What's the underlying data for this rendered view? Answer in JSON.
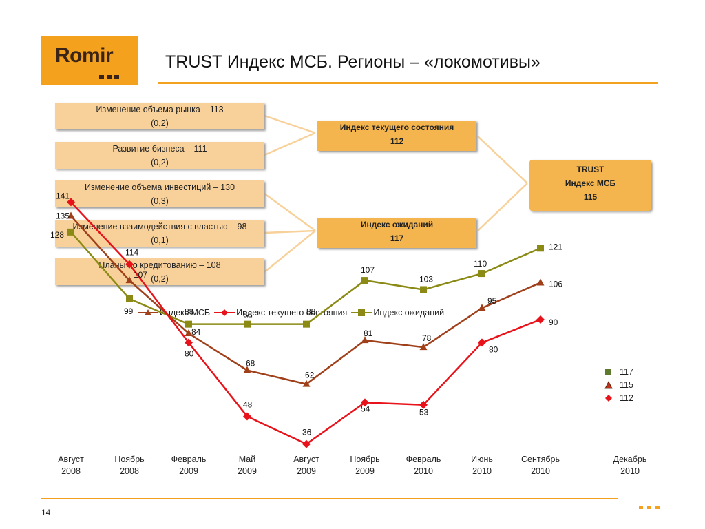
{
  "logo": {
    "text": "Romir"
  },
  "title": "TRUST Индекс МСБ. Регионы – «локомотивы»",
  "components": [
    {
      "label": "Изменение объема рынка – 113",
      "weight": "(0,2)"
    },
    {
      "label": "Развитие бизнеса – 111",
      "weight": "(0,2)"
    },
    {
      "label": "Изменение объема инвестиций – 130",
      "weight": "(0,3)"
    },
    {
      "label": "Изменение взаимодействия с властью – 98",
      "weight": "(0,1)"
    },
    {
      "label": "Планы по кредитованию – 108",
      "weight": "(0,2)"
    }
  ],
  "indices": [
    {
      "label": "Индекс текущего состояния",
      "value": "112"
    },
    {
      "label": "Индекс ожиданий",
      "value": "117"
    }
  ],
  "main_index": {
    "line1": "TRUST",
    "line2": "Индекс МСБ",
    "value": "115"
  },
  "colors": {
    "accent": "#f4a11d",
    "box_light": "#f8d19a",
    "box_mid": "#f5b54e",
    "msb": "#a0401a",
    "current": "#e8131a",
    "expect": "#8a8a14"
  },
  "chart_data": {
    "type": "line",
    "categories": [
      "Август 2008",
      "Ноябрь 2008",
      "Февраль 2009",
      "Май 2009",
      "Август 2009",
      "Ноябрь 2009",
      "Февраль 2010",
      "Июнь 2010",
      "Сентябрь 2010",
      "Декабрь 2010"
    ],
    "series": [
      {
        "name": "Индекс МСБ",
        "marker": "triangle",
        "color": "#a0401a",
        "values": [
          135,
          107,
          84,
          68,
          62,
          81,
          78,
          95,
          106,
          null
        ]
      },
      {
        "name": "Индекс текущего состояния",
        "marker": "diamond",
        "color": "#e8131a",
        "values": [
          141,
          114,
          80,
          48,
          36,
          54,
          53,
          80,
          90,
          null
        ]
      },
      {
        "name": "Индекс ожиданий",
        "marker": "square",
        "color": "#8a8a14",
        "values": [
          128,
          99,
          88,
          88,
          88,
          107,
          103,
          110,
          121,
          null
        ]
      }
    ],
    "forecast": [
      {
        "marker": "square",
        "color": "#5e7a2e",
        "label": "117"
      },
      {
        "marker": "triangle",
        "color": "#c0301a",
        "label": "115"
      },
      {
        "marker": "diamond",
        "color": "#e8131a",
        "label": "112"
      }
    ],
    "legend": "top",
    "grid": false,
    "ylim": [
      30,
      145
    ]
  },
  "page_number": "14"
}
